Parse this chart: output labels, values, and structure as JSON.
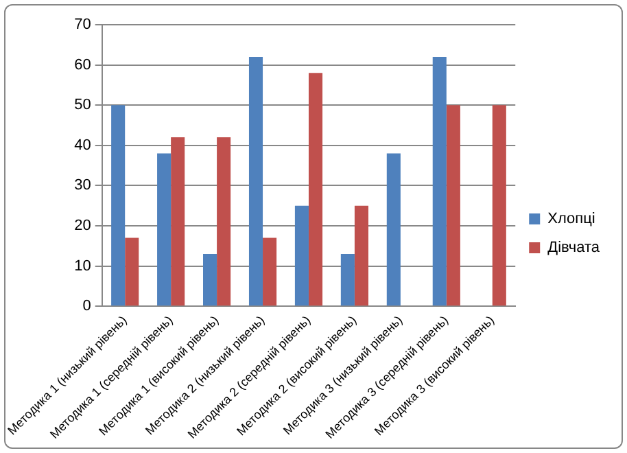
{
  "chart_data": {
    "type": "bar",
    "categories": [
      "Методика 1 (низький рівень)",
      "Методика 1 (середній рівень)",
      "Методика 1 (високий рівень)",
      "Методика 2 (низький рівень)",
      "Методика 2 (середній рівень)",
      "Методика 2 (високий рівень)",
      "Методика 3 (низький рівень)",
      "Методика 3 (середній рівень)",
      "Методика 3 (високий рівень)"
    ],
    "series": [
      {
        "name": "Хлопці",
        "color": "#4f81bd",
        "values": [
          50,
          38,
          13,
          62,
          25,
          13,
          38,
          62,
          0
        ]
      },
      {
        "name": "Дівчата",
        "color": "#c0504d",
        "values": [
          17,
          42,
          42,
          17,
          58,
          25,
          0,
          50,
          50
        ]
      }
    ],
    "ylim": [
      0,
      70
    ],
    "yticks": [
      0,
      10,
      20,
      30,
      40,
      50,
      60,
      70
    ],
    "grid": "y",
    "legend": "right"
  }
}
